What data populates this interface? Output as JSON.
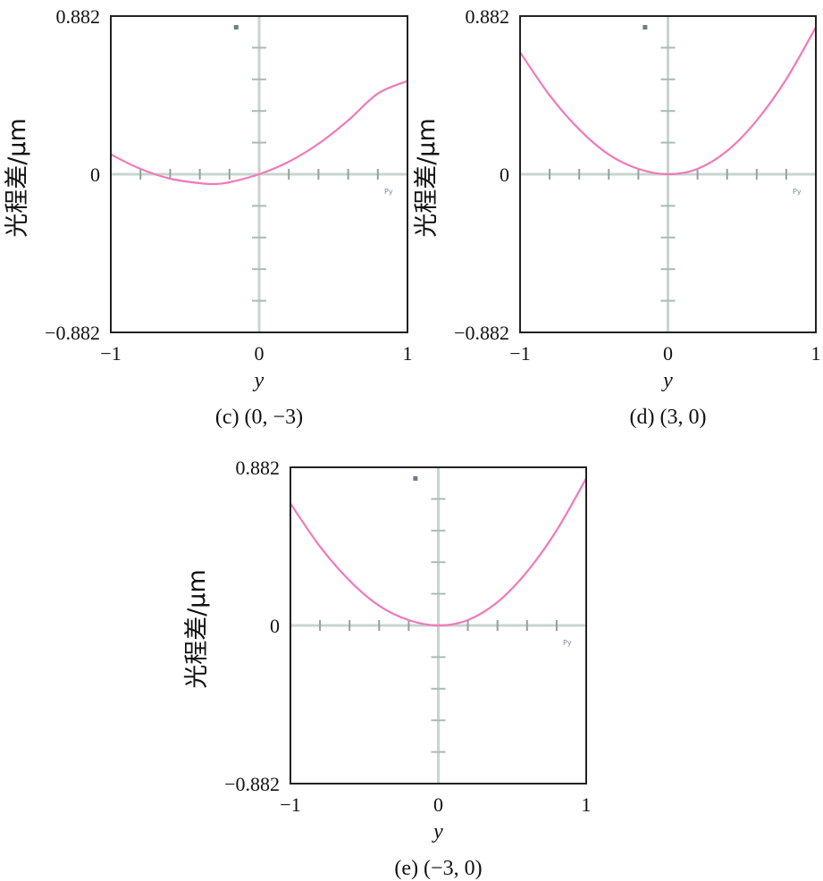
{
  "chart_data": [
    {
      "type": "line",
      "caption": "(c) (0, −3)",
      "xlabel": "y",
      "ylabel": "光程差/μm",
      "xlim": [
        -1,
        1
      ],
      "ylim": [
        -0.882,
        0.882
      ],
      "xticks": [
        "−1",
        "0",
        "1"
      ],
      "yticks": [
        "0.882",
        "0",
        "−0.882"
      ],
      "small_label": "Py",
      "series": [
        {
          "x": [
            -1.0,
            -0.8,
            -0.6,
            -0.4,
            -0.3,
            -0.2,
            0.0,
            0.2,
            0.4,
            0.6,
            0.8,
            1.0
          ],
          "y": [
            0.11,
            0.03,
            -0.025,
            -0.05,
            -0.055,
            -0.045,
            0.0,
            0.07,
            0.17,
            0.3,
            0.45,
            0.52
          ]
        }
      ],
      "colors": {
        "curve": "#f07ab8",
        "axis_cross": "#c8d4d0",
        "frame": "#222222"
      }
    },
    {
      "type": "line",
      "caption": "(d) (3, 0)",
      "xlabel": "y",
      "ylabel": "光程差/μm",
      "xlim": [
        -1,
        1
      ],
      "ylim": [
        -0.882,
        0.882
      ],
      "xticks": [
        "−1",
        "0",
        "1"
      ],
      "yticks": [
        "0.882",
        "0",
        "−0.882"
      ],
      "small_label": "Py",
      "series": [
        {
          "x": [
            -1.0,
            -0.8,
            -0.6,
            -0.4,
            -0.2,
            0.0,
            0.2,
            0.4,
            0.6,
            0.8,
            1.0
          ],
          "y": [
            0.68,
            0.44,
            0.25,
            0.11,
            0.03,
            0.0,
            0.03,
            0.13,
            0.3,
            0.53,
            0.82
          ]
        }
      ],
      "colors": {
        "curve": "#f07ab8",
        "axis_cross": "#c8d4d0",
        "frame": "#222222"
      }
    },
    {
      "type": "line",
      "caption": "(e) (−3, 0)",
      "xlabel": "y",
      "ylabel": "光程差/μm",
      "xlim": [
        -1,
        1
      ],
      "ylim": [
        -0.882,
        0.882
      ],
      "xticks": [
        "−1",
        "0",
        "1"
      ],
      "yticks": [
        "0.882",
        "0",
        "−0.882"
      ],
      "small_label": "Py",
      "series": [
        {
          "x": [
            -1.0,
            -0.8,
            -0.6,
            -0.4,
            -0.2,
            0.0,
            0.2,
            0.4,
            0.6,
            0.8,
            1.0
          ],
          "y": [
            0.68,
            0.44,
            0.25,
            0.11,
            0.03,
            0.0,
            0.03,
            0.13,
            0.3,
            0.53,
            0.82
          ]
        }
      ],
      "colors": {
        "curve": "#f07ab8",
        "axis_cross": "#c8d4d0",
        "frame": "#222222"
      }
    }
  ]
}
